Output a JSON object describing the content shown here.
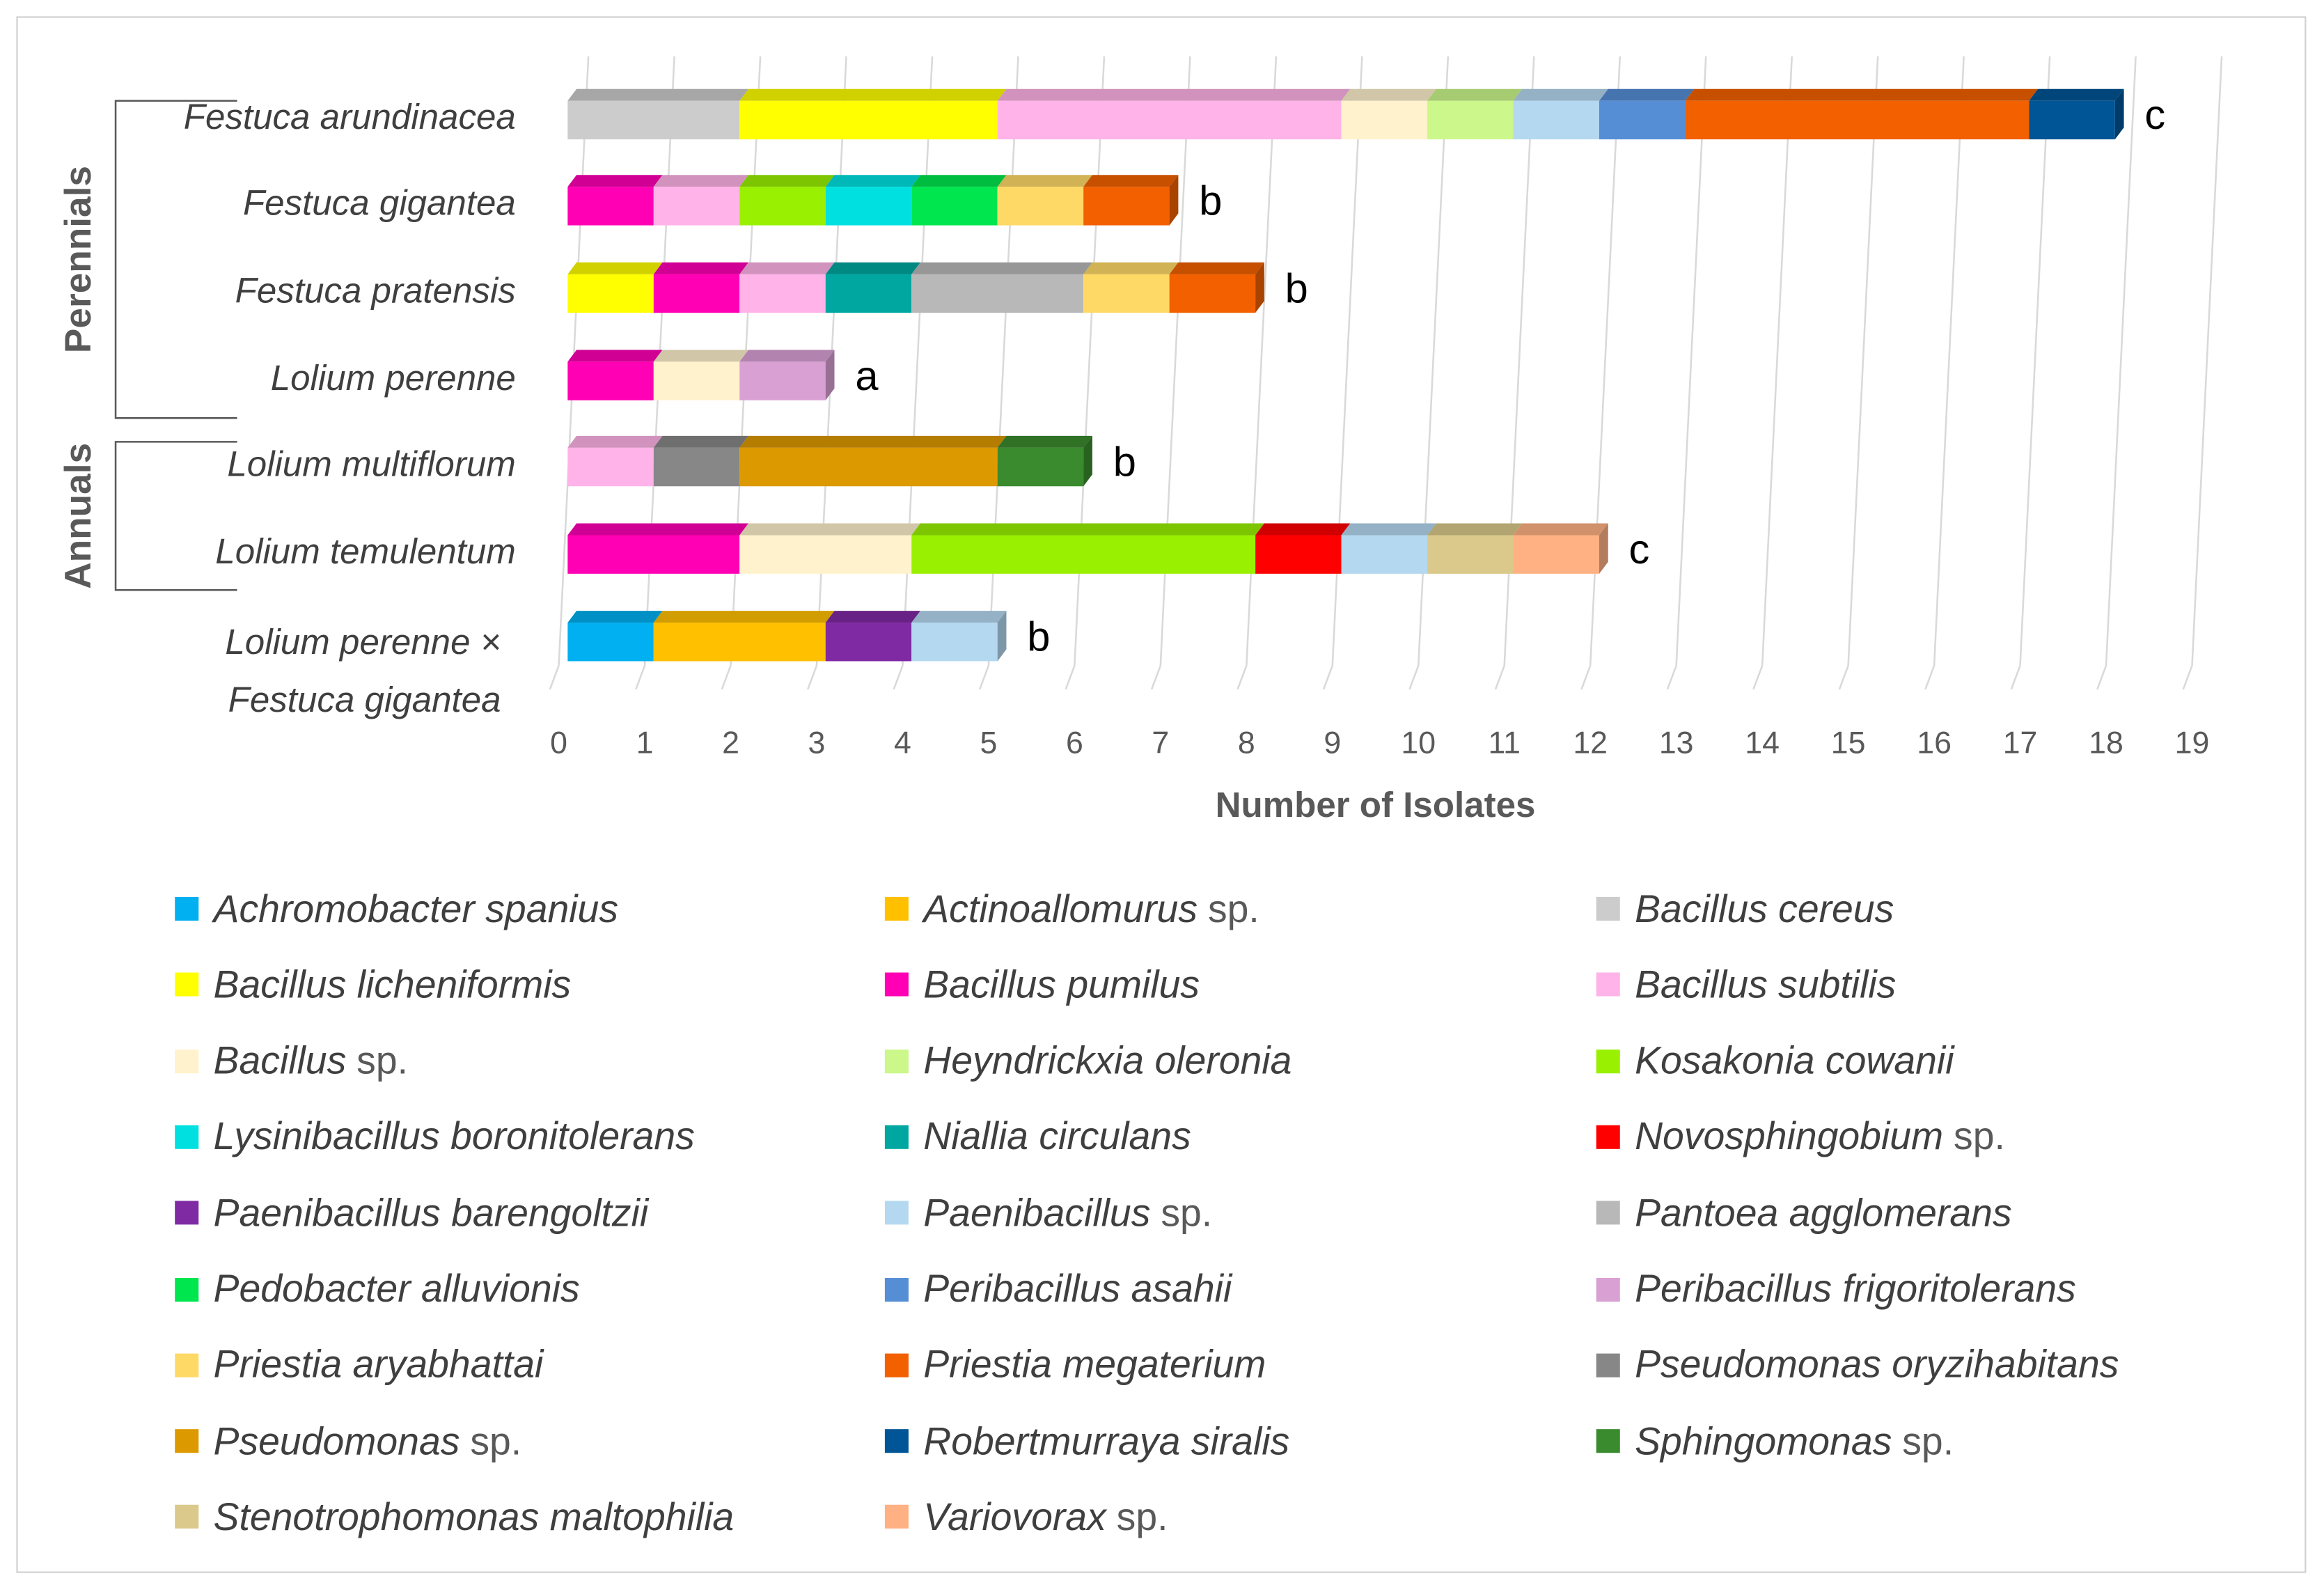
{
  "chart_data": {
    "type": "bar",
    "orientation": "horizontal-stacked-3d",
    "xlabel": "Number of Isolates",
    "xlim": [
      0,
      19
    ],
    "xticks": [
      "0",
      "1",
      "2",
      "3",
      "4",
      "5",
      "6",
      "7",
      "8",
      "9",
      "10",
      "11",
      "12",
      "13",
      "14",
      "15",
      "16",
      "17",
      "18",
      "19"
    ],
    "grid": true,
    "legend_placement": "bottom",
    "groups": [
      {
        "label": "Perennials",
        "categories": [
          0,
          1,
          2,
          3
        ]
      },
      {
        "label": "Annuals",
        "categories": [
          4,
          5
        ]
      }
    ],
    "categories": [
      "Festuca arundinacea",
      "Festuca gigantea",
      "Festuca pratensis",
      "Lolium perenne",
      "Lolium multiflorum",
      "Lolium temulentum",
      "Lolium perenne × Festuca gigantea"
    ],
    "category_lines": [
      [
        "Festuca arundinacea"
      ],
      [
        "Festuca gigantea"
      ],
      [
        "Festuca pratensis"
      ],
      [
        "Lolium perenne"
      ],
      [
        "Lolium multiflorum"
      ],
      [
        "Lolium temulentum"
      ],
      [
        "Lolium perenne ×",
        "Festuca gigantea"
      ]
    ],
    "significance": [
      "c",
      "b",
      "b",
      "a",
      "b",
      "c",
      "b"
    ],
    "series": [
      {
        "name": "Achromobacter spanius",
        "suffix": "",
        "color": "#00b0f0",
        "values": [
          0,
          0,
          0,
          0,
          0,
          0,
          1
        ]
      },
      {
        "name": "Actinoallomurus",
        "suffix": "sp.",
        "color": "#ffc000",
        "values": [
          0,
          0,
          0,
          0,
          0,
          0,
          2
        ]
      },
      {
        "name": "Bacillus cereus",
        "suffix": "",
        "color": "#cccccc",
        "values": [
          2,
          0,
          0,
          0,
          0,
          0,
          0
        ]
      },
      {
        "name": "Bacillus licheniformis",
        "suffix": "",
        "color": "#ffff00",
        "values": [
          3,
          0,
          1,
          0,
          0,
          0,
          0
        ]
      },
      {
        "name": "Bacillus pumilus",
        "suffix": "",
        "color": "#ff00b4",
        "values": [
          0,
          1,
          1,
          1,
          0,
          2,
          0
        ]
      },
      {
        "name": "Bacillus subtilis",
        "suffix": "",
        "color": "#ffb3e8",
        "values": [
          4,
          1,
          1,
          0,
          1,
          0,
          0
        ]
      },
      {
        "name": "Bacillus",
        "suffix": "sp.",
        "color": "#fff2cc",
        "values": [
          1,
          0,
          0,
          1,
          0,
          2,
          0
        ]
      },
      {
        "name": "Heyndrickxia oleronia",
        "suffix": "",
        "color": "#ccf78a",
        "values": [
          1,
          0,
          0,
          0,
          0,
          0,
          0
        ]
      },
      {
        "name": "Kosakonia cowanii",
        "suffix": "",
        "color": "#99f000",
        "values": [
          0,
          1,
          0,
          0,
          0,
          4,
          0
        ]
      },
      {
        "name": "Lysinibacillus boronitolerans",
        "suffix": "",
        "color": "#00e0e0",
        "values": [
          0,
          1,
          0,
          0,
          0,
          0,
          0
        ]
      },
      {
        "name": "Niallia circulans",
        "suffix": "",
        "color": "#00a6a0",
        "values": [
          0,
          0,
          1,
          0,
          0,
          0,
          0
        ]
      },
      {
        "name": "Novosphingobium",
        "suffix": "sp.",
        "color": "#ff0000",
        "values": [
          0,
          0,
          0,
          0,
          0,
          1,
          0
        ]
      },
      {
        "name": "Paenibacillus barengoltzii",
        "suffix": "",
        "color": "#7f2aa3",
        "values": [
          0,
          0,
          0,
          0,
          0,
          0,
          1
        ]
      },
      {
        "name": "Paenibacillus",
        "suffix": "sp.",
        "color": "#b4d8f0",
        "values": [
          1,
          0,
          0,
          0,
          0,
          1,
          1
        ]
      },
      {
        "name": "Pantoea agglomerans",
        "suffix": "",
        "color": "#b8b8b8",
        "values": [
          0,
          0,
          2,
          0,
          0,
          0,
          0
        ]
      },
      {
        "name": "Pedobacter alluvionis",
        "suffix": "",
        "color": "#00e64e",
        "values": [
          0,
          1,
          0,
          0,
          0,
          0,
          0
        ]
      },
      {
        "name": "Peribacillus asahii",
        "suffix": "",
        "color": "#558ed5",
        "values": [
          1,
          0,
          0,
          0,
          0,
          0,
          0
        ]
      },
      {
        "name": "Peribacillus frigoritolerans",
        "suffix": "",
        "color": "#d9a0d4",
        "values": [
          0,
          0,
          0,
          1,
          0,
          0,
          0
        ]
      },
      {
        "name": "Priestia aryabhattai",
        "suffix": "",
        "color": "#ffd966",
        "values": [
          0,
          1,
          1,
          0,
          0,
          0,
          0
        ]
      },
      {
        "name": "Priestia megaterium",
        "suffix": "",
        "color": "#f26000",
        "values": [
          4,
          1,
          1,
          0,
          0,
          0,
          0
        ]
      },
      {
        "name": "Pseudomonas oryzihabitans",
        "suffix": "",
        "color": "#878787",
        "values": [
          0,
          0,
          0,
          0,
          1,
          0,
          0
        ]
      },
      {
        "name": "Pseudomonas",
        "suffix": "sp.",
        "color": "#dd9900",
        "values": [
          0,
          0,
          0,
          0,
          3,
          0,
          0
        ]
      },
      {
        "name": "Robertmurraya siralis",
        "suffix": "",
        "color": "#005596",
        "values": [
          1,
          0,
          0,
          0,
          0,
          0,
          0
        ]
      },
      {
        "name": "Sphingomonas",
        "suffix": "sp.",
        "color": "#3a8a2e",
        "values": [
          0,
          0,
          0,
          0,
          1,
          0,
          0
        ]
      },
      {
        "name": "Stenotrophomonas maltophilia",
        "suffix": "",
        "color": "#dac98a",
        "values": [
          0,
          0,
          0,
          0,
          0,
          1,
          0
        ]
      },
      {
        "name": "Variovorax",
        "suffix": "sp.",
        "color": "#ffb183",
        "values": [
          0,
          0,
          0,
          0,
          0,
          1,
          0
        ]
      }
    ]
  }
}
